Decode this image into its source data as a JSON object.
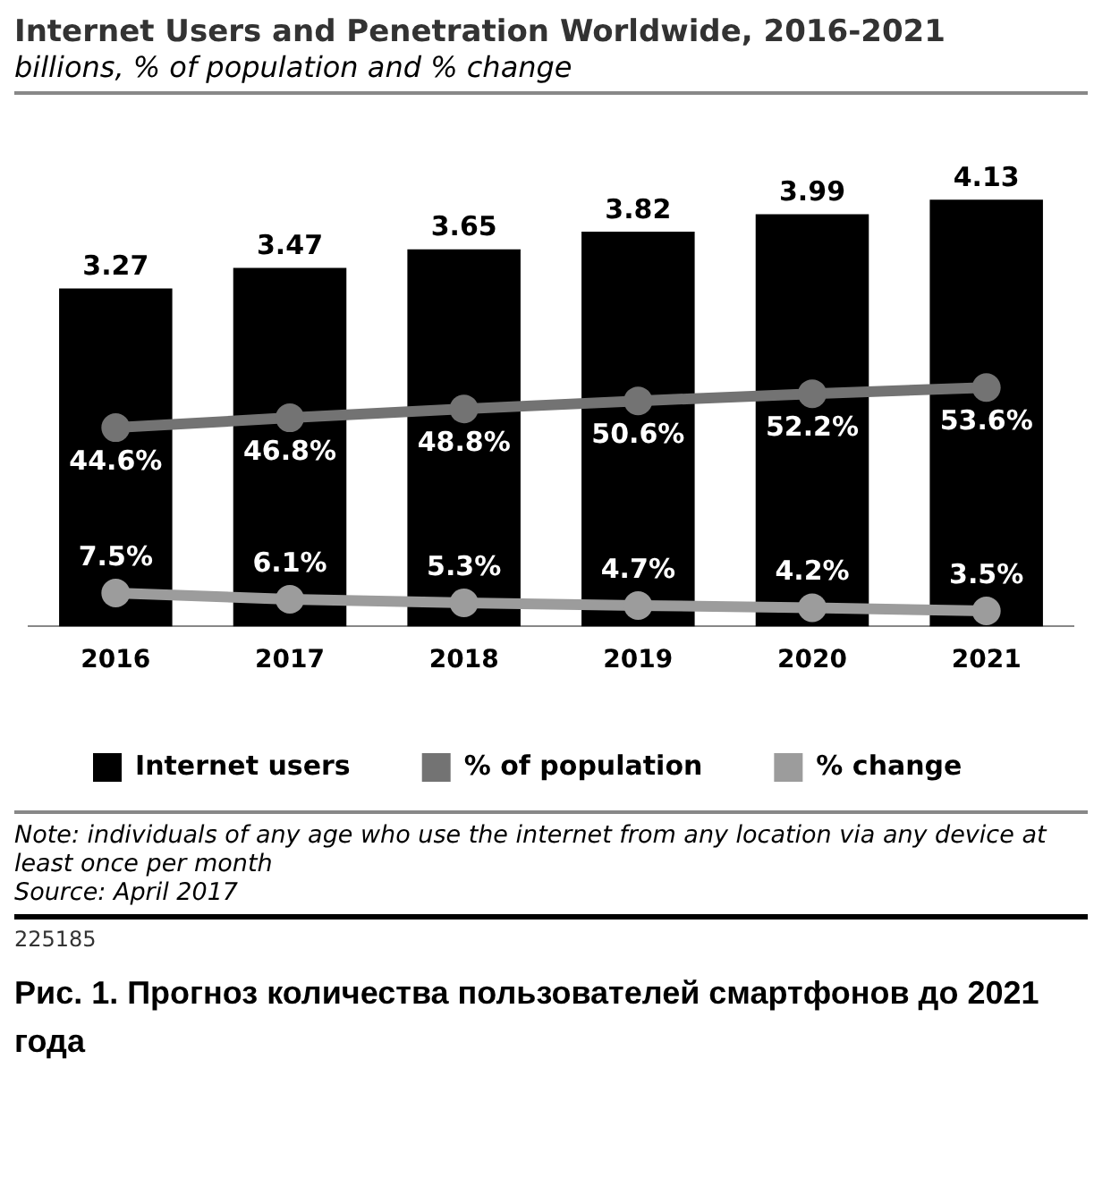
{
  "chart_data": {
    "type": "bar",
    "title": "Internet Users and Penetration Worldwide, 2016-2021",
    "subtitle": "billions, % of population and % change",
    "categories": [
      "2016",
      "2017",
      "2018",
      "2019",
      "2020",
      "2021"
    ],
    "tick_labels": "x",
    "legend": "bottom",
    "series": [
      {
        "name": "Internet users",
        "color": "#000000",
        "values": [
          3.27,
          3.47,
          3.65,
          3.82,
          3.99,
          4.13
        ],
        "value_labels": [
          "3.27",
          "3.47",
          "3.65",
          "3.82",
          "3.99",
          "4.13"
        ]
      },
      {
        "name": "% of population",
        "type": "line",
        "axis": "y2",
        "color": "#737373",
        "values": [
          44.6,
          46.8,
          48.8,
          50.6,
          52.2,
          53.6
        ],
        "value_labels": [
          "44.6%",
          "46.8%",
          "48.8%",
          "50.6%",
          "52.2%",
          "53.6%"
        ]
      },
      {
        "name": "% change",
        "type": "line",
        "axis": "y2",
        "color": "#9c9c9c",
        "values": [
          7.5,
          6.1,
          5.3,
          4.7,
          4.2,
          3.5
        ],
        "value_labels": [
          "7.5%",
          "6.1%",
          "5.3%",
          "4.7%",
          "4.2%",
          "3.5%"
        ]
      }
    ],
    "marker": "circle",
    "annotations": [
      "Note: individuals of any age who use the internet from any location via any device at least once per month",
      "Source: April 2017",
      "225185",
      "Рис. 1. Прогноз количества пользователей смартфонов до 2021 года"
    ]
  }
}
